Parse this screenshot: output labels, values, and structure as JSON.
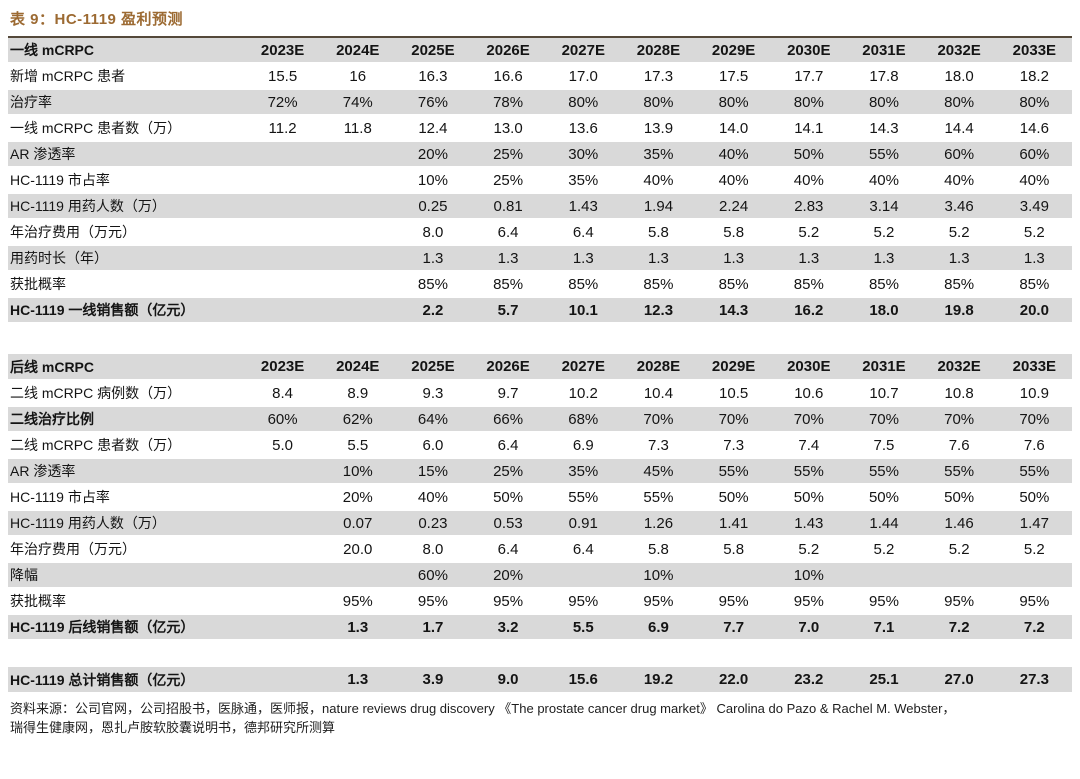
{
  "title": "表 9：HC-1119 盈利预测",
  "colors": {
    "accent_title": "#9c6a32",
    "rule_top": "#54483a",
    "rule_bottom": "#9a7a55",
    "row_band": "#d9d9d9"
  },
  "years": [
    "2023E",
    "2024E",
    "2025E",
    "2026E",
    "2027E",
    "2028E",
    "2029E",
    "2030E",
    "2031E",
    "2032E",
    "2033E"
  ],
  "table_first_line": {
    "header": "一线 mCRPC",
    "rows": [
      {
        "label": "新增 mCRPC 患者",
        "values": [
          "15.5",
          "16",
          "16.3",
          "16.6",
          "17.0",
          "17.3",
          "17.5",
          "17.7",
          "17.8",
          "18.0",
          "18.2"
        ]
      },
      {
        "label": "治疗率",
        "values": [
          "72%",
          "74%",
          "76%",
          "78%",
          "80%",
          "80%",
          "80%",
          "80%",
          "80%",
          "80%",
          "80%"
        ]
      },
      {
        "label": "一线 mCRPC 患者数（万）",
        "values": [
          "11.2",
          "11.8",
          "12.4",
          "13.0",
          "13.6",
          "13.9",
          "14.0",
          "14.1",
          "14.3",
          "14.4",
          "14.6"
        ]
      },
      {
        "label": "AR 渗透率",
        "values": [
          "",
          "",
          "20%",
          "25%",
          "30%",
          "35%",
          "40%",
          "50%",
          "55%",
          "60%",
          "60%"
        ]
      },
      {
        "label": "HC-1119 市占率",
        "values": [
          "",
          "",
          "10%",
          "25%",
          "35%",
          "40%",
          "40%",
          "40%",
          "40%",
          "40%",
          "40%"
        ]
      },
      {
        "label": "HC-1119 用药人数（万）",
        "values": [
          "",
          "",
          "0.25",
          "0.81",
          "1.43",
          "1.94",
          "2.24",
          "2.83",
          "3.14",
          "3.46",
          "3.49"
        ]
      },
      {
        "label": "年治疗费用（万元）",
        "values": [
          "",
          "",
          "8.0",
          "6.4",
          "6.4",
          "5.8",
          "5.8",
          "5.2",
          "5.2",
          "5.2",
          "5.2"
        ]
      },
      {
        "label": "用药时长（年）",
        "values": [
          "",
          "",
          "1.3",
          "1.3",
          "1.3",
          "1.3",
          "1.3",
          "1.3",
          "1.3",
          "1.3",
          "1.3"
        ]
      },
      {
        "label": "获批概率",
        "values": [
          "",
          "",
          "85%",
          "85%",
          "85%",
          "85%",
          "85%",
          "85%",
          "85%",
          "85%",
          "85%"
        ]
      },
      {
        "label": "HC-1119 一线销售额（亿元）",
        "bold": true,
        "values": [
          "",
          "",
          "2.2",
          "5.7",
          "10.1",
          "12.3",
          "14.3",
          "16.2",
          "18.0",
          "19.8",
          "20.0"
        ]
      }
    ]
  },
  "table_later_line": {
    "header": "后线 mCRPC",
    "rows": [
      {
        "label": "二线 mCRPC 病例数（万）",
        "values": [
          "8.4",
          "8.9",
          "9.3",
          "9.7",
          "10.2",
          "10.4",
          "10.5",
          "10.6",
          "10.7",
          "10.8",
          "10.9"
        ]
      },
      {
        "label": "二线治疗比例",
        "bold_label": true,
        "values": [
          "60%",
          "62%",
          "64%",
          "66%",
          "68%",
          "70%",
          "70%",
          "70%",
          "70%",
          "70%",
          "70%"
        ]
      },
      {
        "label": "二线 mCRPC 患者数（万）",
        "values": [
          "5.0",
          "5.5",
          "6.0",
          "6.4",
          "6.9",
          "7.3",
          "7.3",
          "7.4",
          "7.5",
          "7.6",
          "7.6"
        ]
      },
      {
        "label": "AR 渗透率",
        "values": [
          "",
          "10%",
          "15%",
          "25%",
          "35%",
          "45%",
          "55%",
          "55%",
          "55%",
          "55%",
          "55%"
        ]
      },
      {
        "label": "HC-1119 市占率",
        "values": [
          "",
          "20%",
          "40%",
          "50%",
          "55%",
          "55%",
          "50%",
          "50%",
          "50%",
          "50%",
          "50%"
        ]
      },
      {
        "label": "HC-1119 用药人数（万）",
        "values": [
          "",
          "0.07",
          "0.23",
          "0.53",
          "0.91",
          "1.26",
          "1.41",
          "1.43",
          "1.44",
          "1.46",
          "1.47"
        ]
      },
      {
        "label": "年治疗费用（万元）",
        "values": [
          "",
          "20.0",
          "8.0",
          "6.4",
          "6.4",
          "5.8",
          "5.8",
          "5.2",
          "5.2",
          "5.2",
          "5.2"
        ]
      },
      {
        "label": "降幅",
        "values": [
          "",
          "",
          "60%",
          "20%",
          "",
          "10%",
          "",
          "10%",
          "",
          "",
          ""
        ]
      },
      {
        "label": "获批概率",
        "values": [
          "",
          "95%",
          "95%",
          "95%",
          "95%",
          "95%",
          "95%",
          "95%",
          "95%",
          "95%",
          "95%"
        ]
      },
      {
        "label": "HC-1119 后线销售额（亿元）",
        "bold": true,
        "values": [
          "",
          "1.3",
          "1.7",
          "3.2",
          "5.5",
          "6.9",
          "7.7",
          "7.0",
          "7.1",
          "7.2",
          "7.2"
        ]
      }
    ]
  },
  "total_row": {
    "label": "HC-1119 总计销售额（亿元）",
    "bold": true,
    "values": [
      "",
      "1.3",
      "3.9",
      "9.0",
      "15.6",
      "19.2",
      "22.0",
      "23.2",
      "25.1",
      "27.0",
      "27.3"
    ]
  },
  "source": {
    "line1": "资料来源：公司官网，公司招股书，医脉通，医师报，nature reviews drug discovery 《The prostate cancer drug market》 Carolina do Pazo & Rachel M. Webster，",
    "line2": "瑞得生健康网，恩扎卢胺软胶囊说明书，德邦研究所测算"
  }
}
